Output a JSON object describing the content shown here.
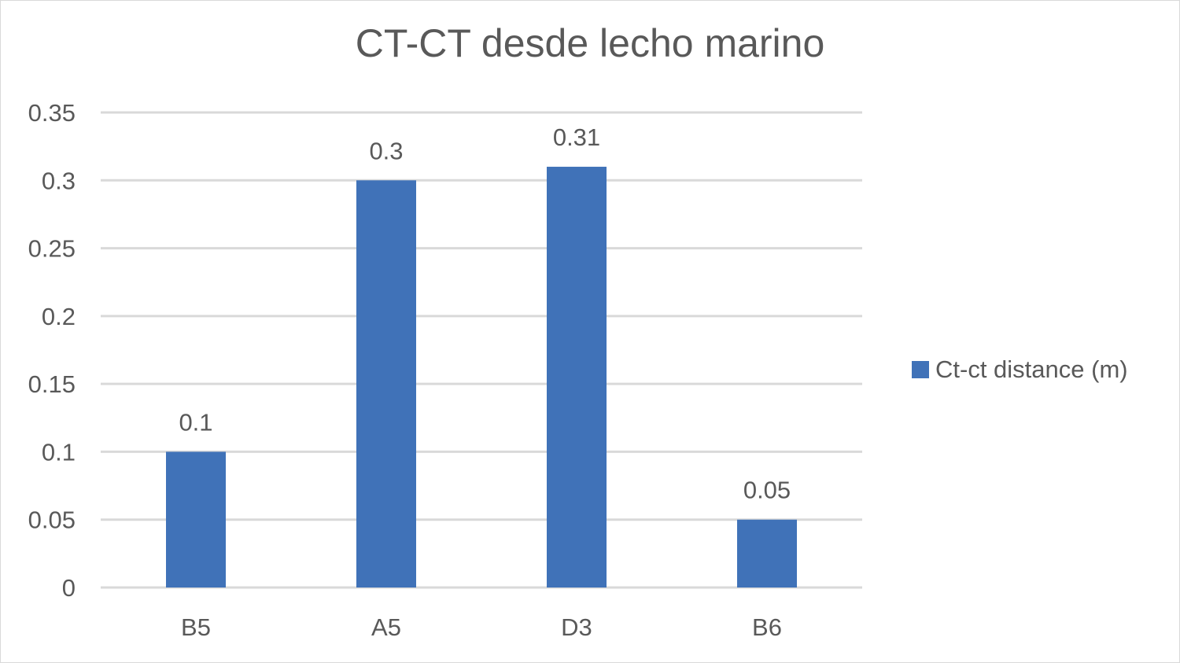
{
  "chart_data": {
    "type": "bar",
    "title": "CT-CT desde lecho marino",
    "categories": [
      "B5",
      "A5",
      "D3",
      "B6"
    ],
    "series": [
      {
        "name": "Ct-ct distance (m)",
        "values": [
          0.1,
          0.3,
          0.31,
          0.05
        ],
        "color": "#4072b8"
      }
    ],
    "data_labels": [
      "0.1",
      "0.3",
      "0.31",
      "0.05"
    ],
    "y_ticks": [
      "0",
      "0.05",
      "0.1",
      "0.15",
      "0.2",
      "0.25",
      "0.3",
      "0.35"
    ],
    "y_tick_values": [
      0,
      0.05,
      0.1,
      0.15,
      0.2,
      0.25,
      0.3,
      0.35
    ],
    "ylim": [
      0,
      0.35
    ],
    "xlabel": "",
    "ylabel": "",
    "grid": true,
    "legend_position": "right",
    "colors": {
      "gridline": "#d9d9d9",
      "text": "#595959"
    }
  }
}
